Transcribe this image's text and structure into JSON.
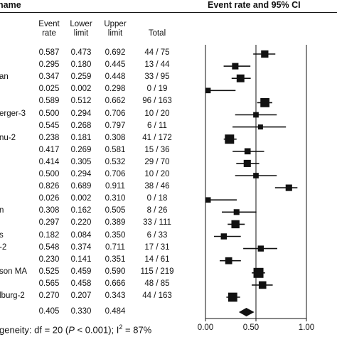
{
  "header": {
    "study_col": "name",
    "plot_title": "Event rate and 95% CI"
  },
  "columns": {
    "event_rate": [
      "Event",
      "rate"
    ],
    "lower_limit": [
      "Lower",
      "limit"
    ],
    "upper_limit": [
      "Upper",
      "limit"
    ],
    "total": "Total"
  },
  "rows": [
    {
      "name": "",
      "rate": "0.587",
      "lower": "0.473",
      "upper": "0.692",
      "total": "44 / 75"
    },
    {
      "name": "",
      "rate": "0.295",
      "lower": "0.180",
      "upper": "0.445",
      "total": "13 / 44"
    },
    {
      "name": "an",
      "rate": "0.347",
      "lower": "0.259",
      "upper": "0.448",
      "total": "33 / 95"
    },
    {
      "name": "",
      "rate": "0.025",
      "lower": "0.002",
      "upper": "0.298",
      "total": "0 / 19"
    },
    {
      "name": "",
      "rate": "0.589",
      "lower": "0.512",
      "upper": "0.662",
      "total": "96 / 163"
    },
    {
      "name": "erger-3",
      "rate": "0.500",
      "lower": "0.294",
      "upper": "0.706",
      "total": "10 / 20"
    },
    {
      "name": "",
      "rate": "0.545",
      "lower": "0.268",
      "upper": "0.797",
      "total": "6 / 11"
    },
    {
      "name": "nu-2",
      "rate": "0.238",
      "lower": "0.181",
      "upper": "0.308",
      "total": "41 / 172"
    },
    {
      "name": "",
      "rate": "0.417",
      "lower": "0.269",
      "upper": "0.581",
      "total": "15 / 36"
    },
    {
      "name": "",
      "rate": "0.414",
      "lower": "0.305",
      "upper": "0.532",
      "total": "29 / 70"
    },
    {
      "name": "",
      "rate": "0.500",
      "lower": "0.294",
      "upper": "0.706",
      "total": "10 / 20"
    },
    {
      "name": "",
      "rate": "0.826",
      "lower": "0.689",
      "upper": "0.911",
      "total": "38 / 46"
    },
    {
      "name": "",
      "rate": "0.026",
      "lower": "0.002",
      "upper": "0.310",
      "total": "0 / 18"
    },
    {
      "name": "n",
      "rate": "0.308",
      "lower": "0.162",
      "upper": "0.505",
      "total": "8 / 26"
    },
    {
      "name": "",
      "rate": "0.297",
      "lower": "0.220",
      "upper": "0.389",
      "total": "33 / 111"
    },
    {
      "name": "s",
      "rate": "0.182",
      "lower": "0.084",
      "upper": "0.350",
      "total": "6 / 33"
    },
    {
      "name": "-2",
      "rate": "0.548",
      "lower": "0.374",
      "upper": "0.711",
      "total": "17 / 31"
    },
    {
      "name": "",
      "rate": "0.230",
      "lower": "0.141",
      "upper": "0.351",
      "total": "14 / 61"
    },
    {
      "name": "son MA",
      "rate": "0.525",
      "lower": "0.459",
      "upper": "0.590",
      "total": "115 / 219"
    },
    {
      "name": "",
      "rate": "0.565",
      "lower": "0.458",
      "upper": "0.666",
      "total": "48 / 85"
    },
    {
      "name": "lburg-2",
      "rate": "0.270",
      "lower": "0.207",
      "upper": "0.343",
      "total": "44 / 163"
    }
  ],
  "pooled": {
    "rate": "0.405",
    "lower": "0.330",
    "upper": "0.484"
  },
  "footer": {
    "prefix": "geneity: df = 20 (",
    "p_symbol": "P",
    "p_value": " < 0.001); I",
    "i2_sup": "2",
    "i2_value": " = 87%"
  },
  "chart_data": {
    "type": "forest",
    "title": "Event rate and 95% CI",
    "xlim": [
      0,
      1
    ],
    "ticks": [
      "0.00",
      "0.50",
      "1.00"
    ],
    "tick_values": [
      0,
      0.5,
      1.0
    ],
    "reference_line": 0.5,
    "colors": {
      "marker": "#111111",
      "line": "#111111",
      "axis": "#111111"
    },
    "studies": [
      {
        "estimate": 0.587,
        "lower": 0.473,
        "upper": 0.692,
        "total": 75
      },
      {
        "estimate": 0.295,
        "lower": 0.18,
        "upper": 0.445,
        "total": 44
      },
      {
        "estimate": 0.347,
        "lower": 0.259,
        "upper": 0.448,
        "total": 95
      },
      {
        "estimate": 0.025,
        "lower": 0.002,
        "upper": 0.298,
        "total": 19
      },
      {
        "estimate": 0.589,
        "lower": 0.512,
        "upper": 0.662,
        "total": 163
      },
      {
        "estimate": 0.5,
        "lower": 0.294,
        "upper": 0.706,
        "total": 20
      },
      {
        "estimate": 0.545,
        "lower": 0.268,
        "upper": 0.797,
        "total": 11
      },
      {
        "estimate": 0.238,
        "lower": 0.181,
        "upper": 0.308,
        "total": 172
      },
      {
        "estimate": 0.417,
        "lower": 0.269,
        "upper": 0.581,
        "total": 36
      },
      {
        "estimate": 0.414,
        "lower": 0.305,
        "upper": 0.532,
        "total": 70
      },
      {
        "estimate": 0.5,
        "lower": 0.294,
        "upper": 0.706,
        "total": 20
      },
      {
        "estimate": 0.826,
        "lower": 0.689,
        "upper": 0.911,
        "total": 46
      },
      {
        "estimate": 0.026,
        "lower": 0.002,
        "upper": 0.31,
        "total": 18
      },
      {
        "estimate": 0.308,
        "lower": 0.162,
        "upper": 0.505,
        "total": 26
      },
      {
        "estimate": 0.297,
        "lower": 0.22,
        "upper": 0.389,
        "total": 111
      },
      {
        "estimate": 0.182,
        "lower": 0.084,
        "upper": 0.35,
        "total": 33
      },
      {
        "estimate": 0.548,
        "lower": 0.374,
        "upper": 0.711,
        "total": 31
      },
      {
        "estimate": 0.23,
        "lower": 0.141,
        "upper": 0.351,
        "total": 61
      },
      {
        "estimate": 0.525,
        "lower": 0.459,
        "upper": 0.59,
        "total": 219
      },
      {
        "estimate": 0.565,
        "lower": 0.458,
        "upper": 0.666,
        "total": 85
      },
      {
        "estimate": 0.27,
        "lower": 0.207,
        "upper": 0.343,
        "total": 163
      }
    ],
    "pooled": {
      "estimate": 0.405,
      "lower": 0.33,
      "upper": 0.484
    }
  }
}
